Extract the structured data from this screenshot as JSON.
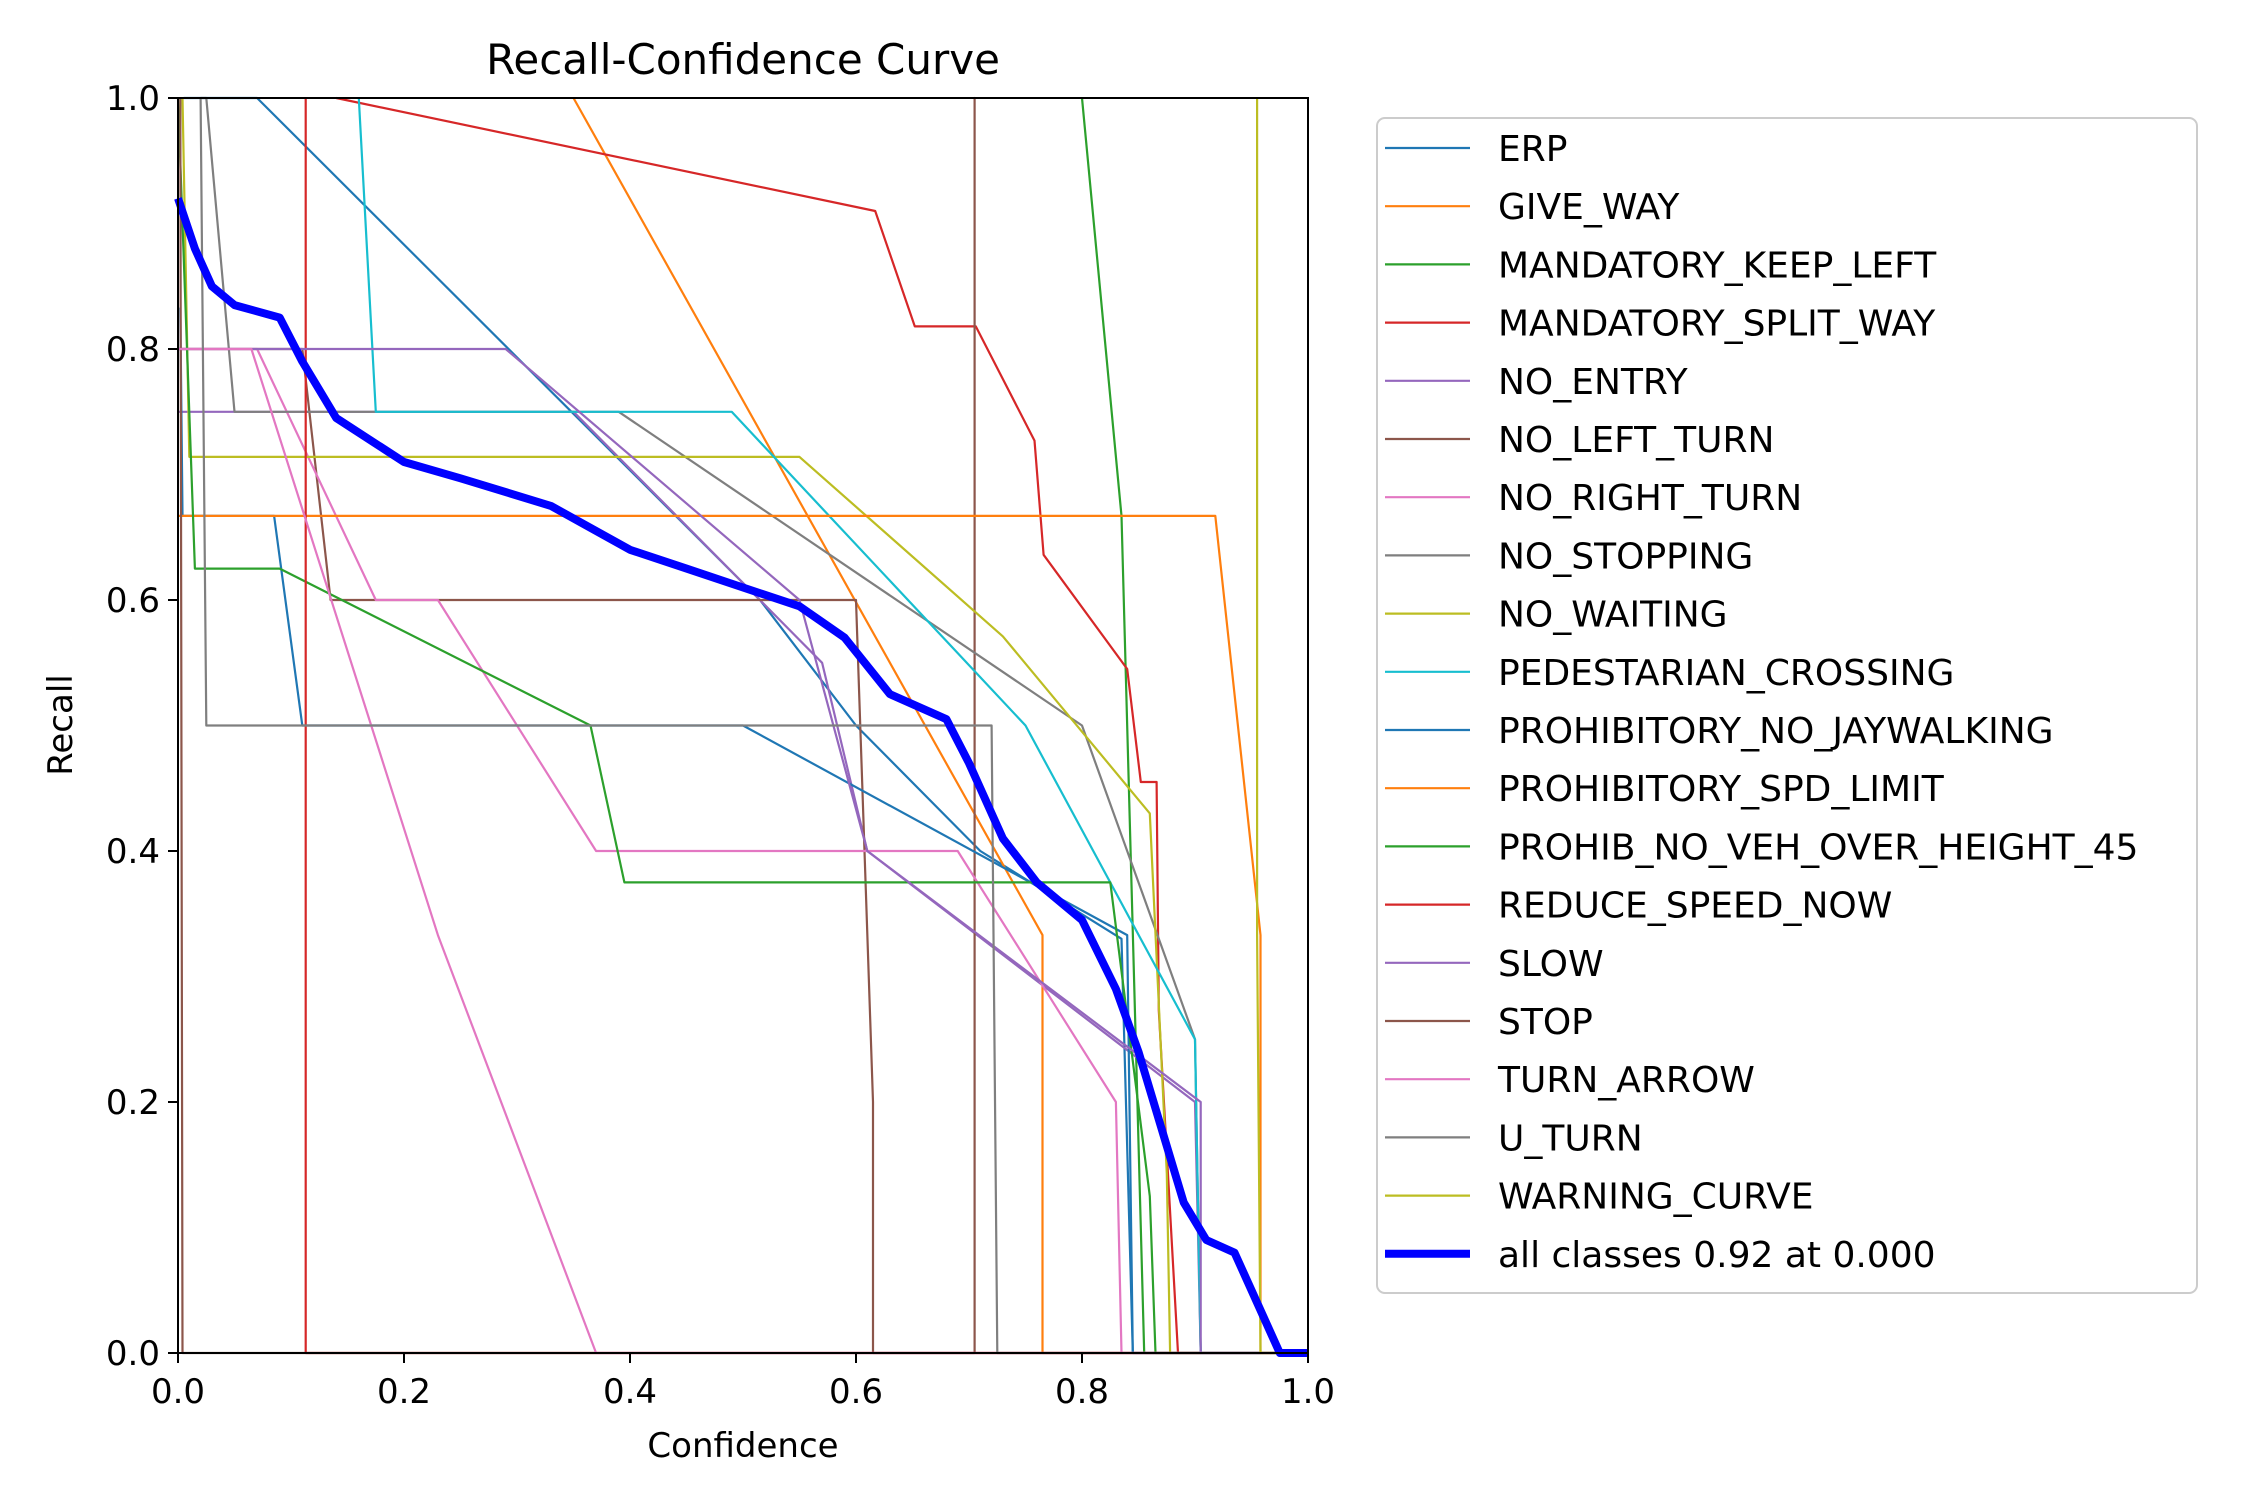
{
  "chart_data": {
    "type": "line",
    "title": "Recall-Confidence Curve",
    "xlabel": "Confidence",
    "ylabel": "Recall",
    "xlim": [
      0,
      1
    ],
    "ylim": [
      0,
      1
    ],
    "xticks": [
      "0.0",
      "0.2",
      "0.4",
      "0.6",
      "0.8",
      "1.0"
    ],
    "yticks": [
      "0.0",
      "0.2",
      "0.4",
      "0.6",
      "0.8",
      "1.0"
    ],
    "grid": false,
    "legend_position": "outside-right",
    "series": [
      {
        "name": "ERP",
        "color": "#1f77b4",
        "points": [
          [
            0.005,
            1.0
          ],
          [
            0.07,
            1.0
          ],
          [
            0.515,
            0.6
          ],
          [
            0.6,
            0.5
          ],
          [
            0.71,
            0.4
          ],
          [
            0.835,
            0.33
          ],
          [
            0.845,
            0.0
          ],
          [
            1.0,
            0.0
          ]
        ]
      },
      {
        "name": "GIVE_WAY",
        "color": "#ff7f0e",
        "points": [
          [
            0.35,
            1.0
          ],
          [
            0.765,
            0.333
          ],
          [
            0.765,
            0.0
          ],
          [
            1.0,
            0.0
          ]
        ]
      },
      {
        "name": "MANDATORY_KEEP_LEFT",
        "color": "#2ca02c",
        "points": [
          [
            0.8,
            1.0
          ],
          [
            0.835,
            0.667
          ],
          [
            0.855,
            0.0
          ],
          [
            1.0,
            0.0
          ]
        ]
      },
      {
        "name": "MANDATORY_SPLIT_WAY",
        "color": "#d62728",
        "points": [
          [
            0.14,
            1.0
          ],
          [
            0.617,
            0.91
          ],
          [
            0.652,
            0.818
          ],
          [
            0.706,
            0.818
          ],
          [
            0.758,
            0.727
          ],
          [
            0.766,
            0.636
          ],
          [
            0.84,
            0.545
          ],
          [
            0.852,
            0.455
          ],
          [
            0.866,
            0.455
          ],
          [
            0.868,
            0.273
          ],
          [
            0.885,
            0.0
          ],
          [
            1.0,
            0.0
          ]
        ]
      },
      {
        "name": "NO_ENTRY",
        "color": "#9467bd",
        "points": [
          [
            0.0,
            0.75
          ],
          [
            0.1,
            0.75
          ],
          [
            0.35,
            0.75
          ],
          [
            0.57,
            0.55
          ],
          [
            0.61,
            0.4
          ],
          [
            0.9,
            0.2
          ],
          [
            0.905,
            0.0
          ],
          [
            1.0,
            0.0
          ]
        ]
      },
      {
        "name": "NO_LEFT_TURN",
        "color": "#8c564b",
        "points": [
          [
            0.0,
            0.8
          ],
          [
            0.11,
            0.8
          ],
          [
            0.135,
            0.6
          ],
          [
            0.6,
            0.6
          ],
          [
            0.615,
            0.2
          ],
          [
            0.615,
            0.0
          ],
          [
            0.705,
            0.0
          ],
          [
            0.705,
            1.0
          ],
          [
            0.705,
            0.0
          ],
          [
            1.0,
            0.0
          ]
        ]
      },
      {
        "name": "NO_RIGHT_TURN",
        "color": "#e377c2",
        "points": [
          [
            0.0,
            0.8
          ],
          [
            0.07,
            0.8
          ],
          [
            0.175,
            0.6
          ],
          [
            0.23,
            0.6
          ],
          [
            0.37,
            0.4
          ],
          [
            0.69,
            0.4
          ],
          [
            0.83,
            0.2
          ],
          [
            0.835,
            0.0
          ],
          [
            1.0,
            0.0
          ]
        ]
      },
      {
        "name": "NO_STOPPING",
        "color": "#7f7f7f",
        "points": [
          [
            0.02,
            1.0
          ],
          [
            0.025,
            1.0
          ],
          [
            0.05,
            0.75
          ],
          [
            0.39,
            0.75
          ],
          [
            0.8,
            0.5
          ],
          [
            0.9,
            0.25
          ],
          [
            0.905,
            0.0
          ],
          [
            1.0,
            0.0
          ]
        ]
      },
      {
        "name": "NO_WAITING",
        "color": "#bcbd22",
        "points": [
          [
            0.004,
            1.0
          ],
          [
            0.01,
            0.714
          ],
          [
            0.55,
            0.714
          ],
          [
            0.73,
            0.571
          ],
          [
            0.86,
            0.43
          ],
          [
            0.875,
            0.143
          ],
          [
            0.878,
            0.0
          ],
          [
            1.0,
            0.0
          ]
        ]
      },
      {
        "name": "PEDESTARIAN_CROSSING",
        "color": "#17becf",
        "points": [
          [
            0.16,
            1.0
          ],
          [
            0.175,
            0.75
          ],
          [
            0.49,
            0.75
          ],
          [
            0.75,
            0.5
          ],
          [
            0.9,
            0.25
          ],
          [
            0.905,
            0.0
          ],
          [
            1.0,
            0.0
          ]
        ]
      },
      {
        "name": "PROHIBITORY_NO_JAYWALKING",
        "color": "#1f77b4",
        "points": [
          [
            0.002,
            0.833
          ],
          [
            0.004,
            0.667
          ],
          [
            0.085,
            0.667
          ],
          [
            0.11,
            0.5
          ],
          [
            0.5,
            0.5
          ],
          [
            0.84,
            0.333
          ],
          [
            0.845,
            0.0
          ],
          [
            1.0,
            0.0
          ]
        ]
      },
      {
        "name": "PROHIBITORY_SPD_LIMIT",
        "color": "#ff7f0e",
        "points": [
          [
            0.0,
            0.667
          ],
          [
            0.918,
            0.667
          ],
          [
            0.958,
            0.333
          ],
          [
            0.958,
            0.0
          ],
          [
            1.0,
            0.0
          ]
        ]
      },
      {
        "name": "PROHIB_NO_VEH_OVER_HEIGHT_45",
        "color": "#2ca02c",
        "points": [
          [
            0.0,
            1.0
          ],
          [
            0.015,
            0.625
          ],
          [
            0.09,
            0.625
          ],
          [
            0.365,
            0.5
          ],
          [
            0.395,
            0.375
          ],
          [
            0.825,
            0.375
          ],
          [
            0.86,
            0.125
          ],
          [
            0.865,
            0.0
          ],
          [
            1.0,
            0.0
          ]
        ]
      },
      {
        "name": "REDUCE_SPEED_NOW",
        "color": "#d62728",
        "points": [
          [
            0.113,
            1.0
          ],
          [
            0.113,
            0.0
          ],
          [
            1.0,
            0.0
          ]
        ]
      },
      {
        "name": "SLOW",
        "color": "#9467bd",
        "points": [
          [
            0.0,
            0.8
          ],
          [
            0.29,
            0.8
          ],
          [
            0.55,
            0.6
          ],
          [
            0.61,
            0.4
          ],
          [
            0.905,
            0.2
          ],
          [
            0.905,
            0.0
          ],
          [
            1.0,
            0.0
          ]
        ]
      },
      {
        "name": "STOP",
        "color": "#8c564b",
        "points": [
          [
            0.002,
            1.0
          ],
          [
            0.004,
            0.0
          ],
          [
            0.705,
            0.0
          ]
        ]
      },
      {
        "name": "TURN_ARROW",
        "color": "#e377c2",
        "points": [
          [
            0.0,
            0.8
          ],
          [
            0.065,
            0.8
          ],
          [
            0.23,
            0.333
          ],
          [
            0.37,
            0.0
          ],
          [
            1.0,
            0.0
          ]
        ]
      },
      {
        "name": "U_TURN",
        "color": "#7f7f7f",
        "points": [
          [
            0.02,
            1.0
          ],
          [
            0.025,
            0.5
          ],
          [
            0.72,
            0.5
          ],
          [
            0.725,
            0.0
          ],
          [
            1.0,
            0.0
          ]
        ]
      },
      {
        "name": "WARNING_CURVE",
        "color": "#bcbd22",
        "points": [
          [
            0.955,
            1.0
          ],
          [
            0.955,
            0.333
          ],
          [
            0.958,
            0.0
          ],
          [
            1.0,
            0.0
          ]
        ]
      },
      {
        "name": "all classes 0.92 at 0.000",
        "color": "#0000ff",
        "width": "thick",
        "points": [
          [
            0.0,
            0.92
          ],
          [
            0.015,
            0.88
          ],
          [
            0.03,
            0.85
          ],
          [
            0.05,
            0.835
          ],
          [
            0.09,
            0.825
          ],
          [
            0.11,
            0.79
          ],
          [
            0.14,
            0.745
          ],
          [
            0.2,
            0.71
          ],
          [
            0.25,
            0.697
          ],
          [
            0.33,
            0.675
          ],
          [
            0.4,
            0.64
          ],
          [
            0.45,
            0.625
          ],
          [
            0.5,
            0.61
          ],
          [
            0.55,
            0.595
          ],
          [
            0.59,
            0.57
          ],
          [
            0.63,
            0.525
          ],
          [
            0.68,
            0.505
          ],
          [
            0.7,
            0.47
          ],
          [
            0.73,
            0.41
          ],
          [
            0.76,
            0.375
          ],
          [
            0.8,
            0.345
          ],
          [
            0.83,
            0.29
          ],
          [
            0.85,
            0.24
          ],
          [
            0.87,
            0.18
          ],
          [
            0.89,
            0.12
          ],
          [
            0.91,
            0.09
          ],
          [
            0.935,
            0.08
          ],
          [
            0.96,
            0.03
          ],
          [
            0.975,
            0.0
          ],
          [
            1.0,
            0.0
          ]
        ]
      }
    ]
  }
}
